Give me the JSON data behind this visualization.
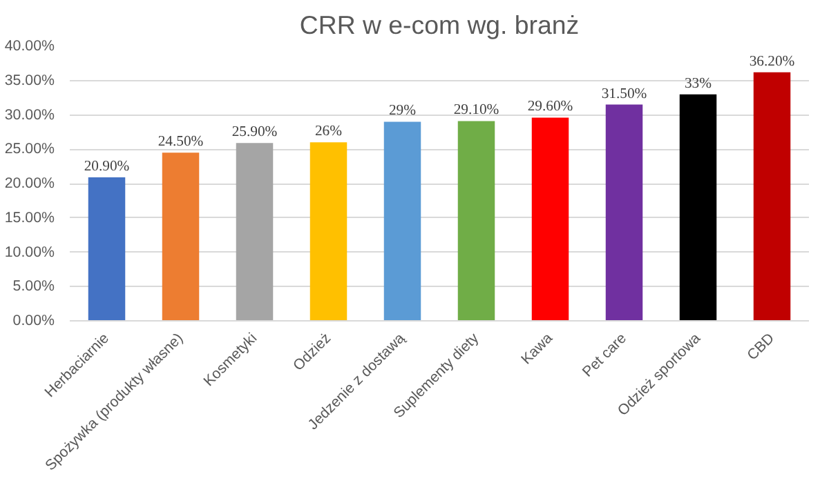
{
  "chart_data": {
    "type": "bar",
    "title": "CRR w e-com wg. branż",
    "categories": [
      "Herbaciarnie",
      "Spożywka (produkty własne)",
      "Kosmetyki",
      "Odzież",
      "Jedzenie z dostawą",
      "Suplementy diety",
      "Kawa",
      "Pet care",
      "Odzież sportowa",
      "CBD"
    ],
    "values": [
      20.9,
      24.5,
      25.9,
      26,
      29,
      29.1,
      29.6,
      31.5,
      33,
      36.2
    ],
    "colors": [
      "#4472c4",
      "#ed7d31",
      "#a5a5a5",
      "#ffc000",
      "#5b9bd5",
      "#70ad47",
      "#ff0000",
      "#7030a0",
      "#000000",
      "#c00000"
    ],
    "value_labels": [
      "20.90%",
      "24.50%",
      "25.90%",
      "26%",
      "29%",
      "29.10%",
      "29.60%",
      "31.50%",
      "33%",
      "36.20%"
    ],
    "ylim": [
      0,
      40
    ],
    "yticks": [
      {
        "value": 0,
        "label": "0.00%"
      },
      {
        "value": 5,
        "label": "5.00%"
      },
      {
        "value": 10,
        "label": "10.00%"
      },
      {
        "value": 15,
        "label": "15.00%"
      },
      {
        "value": 20,
        "label": "20.00%"
      },
      {
        "value": 25,
        "label": "25.00%"
      },
      {
        "value": 30,
        "label": "30.00%"
      },
      {
        "value": 35,
        "label": "35.00%"
      },
      {
        "value": 40,
        "label": "40.00%"
      }
    ],
    "grid": "y"
  }
}
